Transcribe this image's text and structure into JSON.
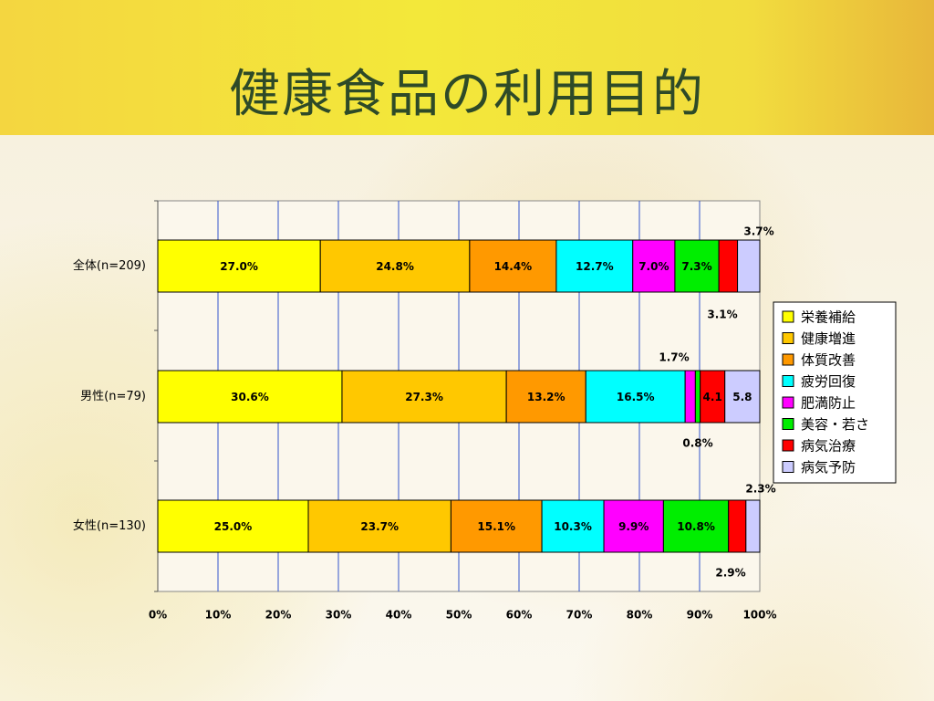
{
  "title": "健康食品の利用目的",
  "colors": {
    "plot_bg": "#fbf7ec",
    "gridline": "#3355cc",
    "bar_border": "#000000"
  },
  "chart_data": {
    "type": "bar",
    "orientation": "horizontal",
    "stacked": true,
    "percent": true,
    "categories": [
      "全体(n=209)",
      "男性(n=79)",
      "女性(n=130)"
    ],
    "series": [
      {
        "name": "栄養補給",
        "color": "#ffff00",
        "values": [
          27.0,
          30.6,
          25.0
        ]
      },
      {
        "name": "健康増進",
        "color": "#ffc800",
        "values": [
          24.8,
          27.3,
          23.7
        ]
      },
      {
        "name": "体質改善",
        "color": "#ff9900",
        "values": [
          14.4,
          13.2,
          15.1
        ]
      },
      {
        "name": "疲労回復",
        "color": "#00ffff",
        "values": [
          12.7,
          16.5,
          10.3
        ]
      },
      {
        "name": "肥満防止",
        "color": "#ff00ff",
        "values": [
          7.0,
          1.7,
          9.9
        ]
      },
      {
        "name": "美容・若さ",
        "color": "#00ee00",
        "values": [
          7.3,
          0.8,
          10.8
        ]
      },
      {
        "name": "病気治療",
        "color": "#ff0000",
        "values": [
          3.1,
          4.1,
          2.9
        ]
      },
      {
        "name": "病気予防",
        "color": "#ccccff",
        "values": [
          3.7,
          5.8,
          2.3
        ]
      }
    ],
    "xlim": [
      0,
      100
    ],
    "x_ticks": [
      "0%",
      "10%",
      "20%",
      "30%",
      "40%",
      "50%",
      "60%",
      "70%",
      "80%",
      "90%",
      "100%"
    ],
    "grid": true,
    "legend_position": "right",
    "bar_labels": [
      [
        "27.0%",
        "24.8%",
        "14.4%",
        "12.7%",
        "7.0%",
        "7.3%",
        "",
        ""
      ],
      [
        "30.6%",
        "27.3%",
        "13.2%",
        "16.5%",
        "",
        "",
        "4.1",
        "5.8"
      ],
      [
        "25.0%",
        "23.7%",
        "15.1%",
        "10.3%",
        "9.9%",
        "10.8%",
        "",
        ""
      ]
    ],
    "callouts": [
      {
        "text": "3.7%",
        "color": "#000000",
        "category": 0,
        "side": "above"
      },
      {
        "text": "3.1%",
        "color": "#dd0000",
        "category": 0,
        "side": "below"
      },
      {
        "text": "1.7%",
        "color": "#cc00cc",
        "category": 1,
        "side": "above"
      },
      {
        "text": "0.8%",
        "color": "#00bb00",
        "category": 1,
        "side": "below"
      },
      {
        "text": "2.3%",
        "color": "#000000",
        "category": 2,
        "side": "above"
      },
      {
        "text": "2.9%",
        "color": "#dd0000",
        "category": 2,
        "side": "below"
      }
    ]
  }
}
